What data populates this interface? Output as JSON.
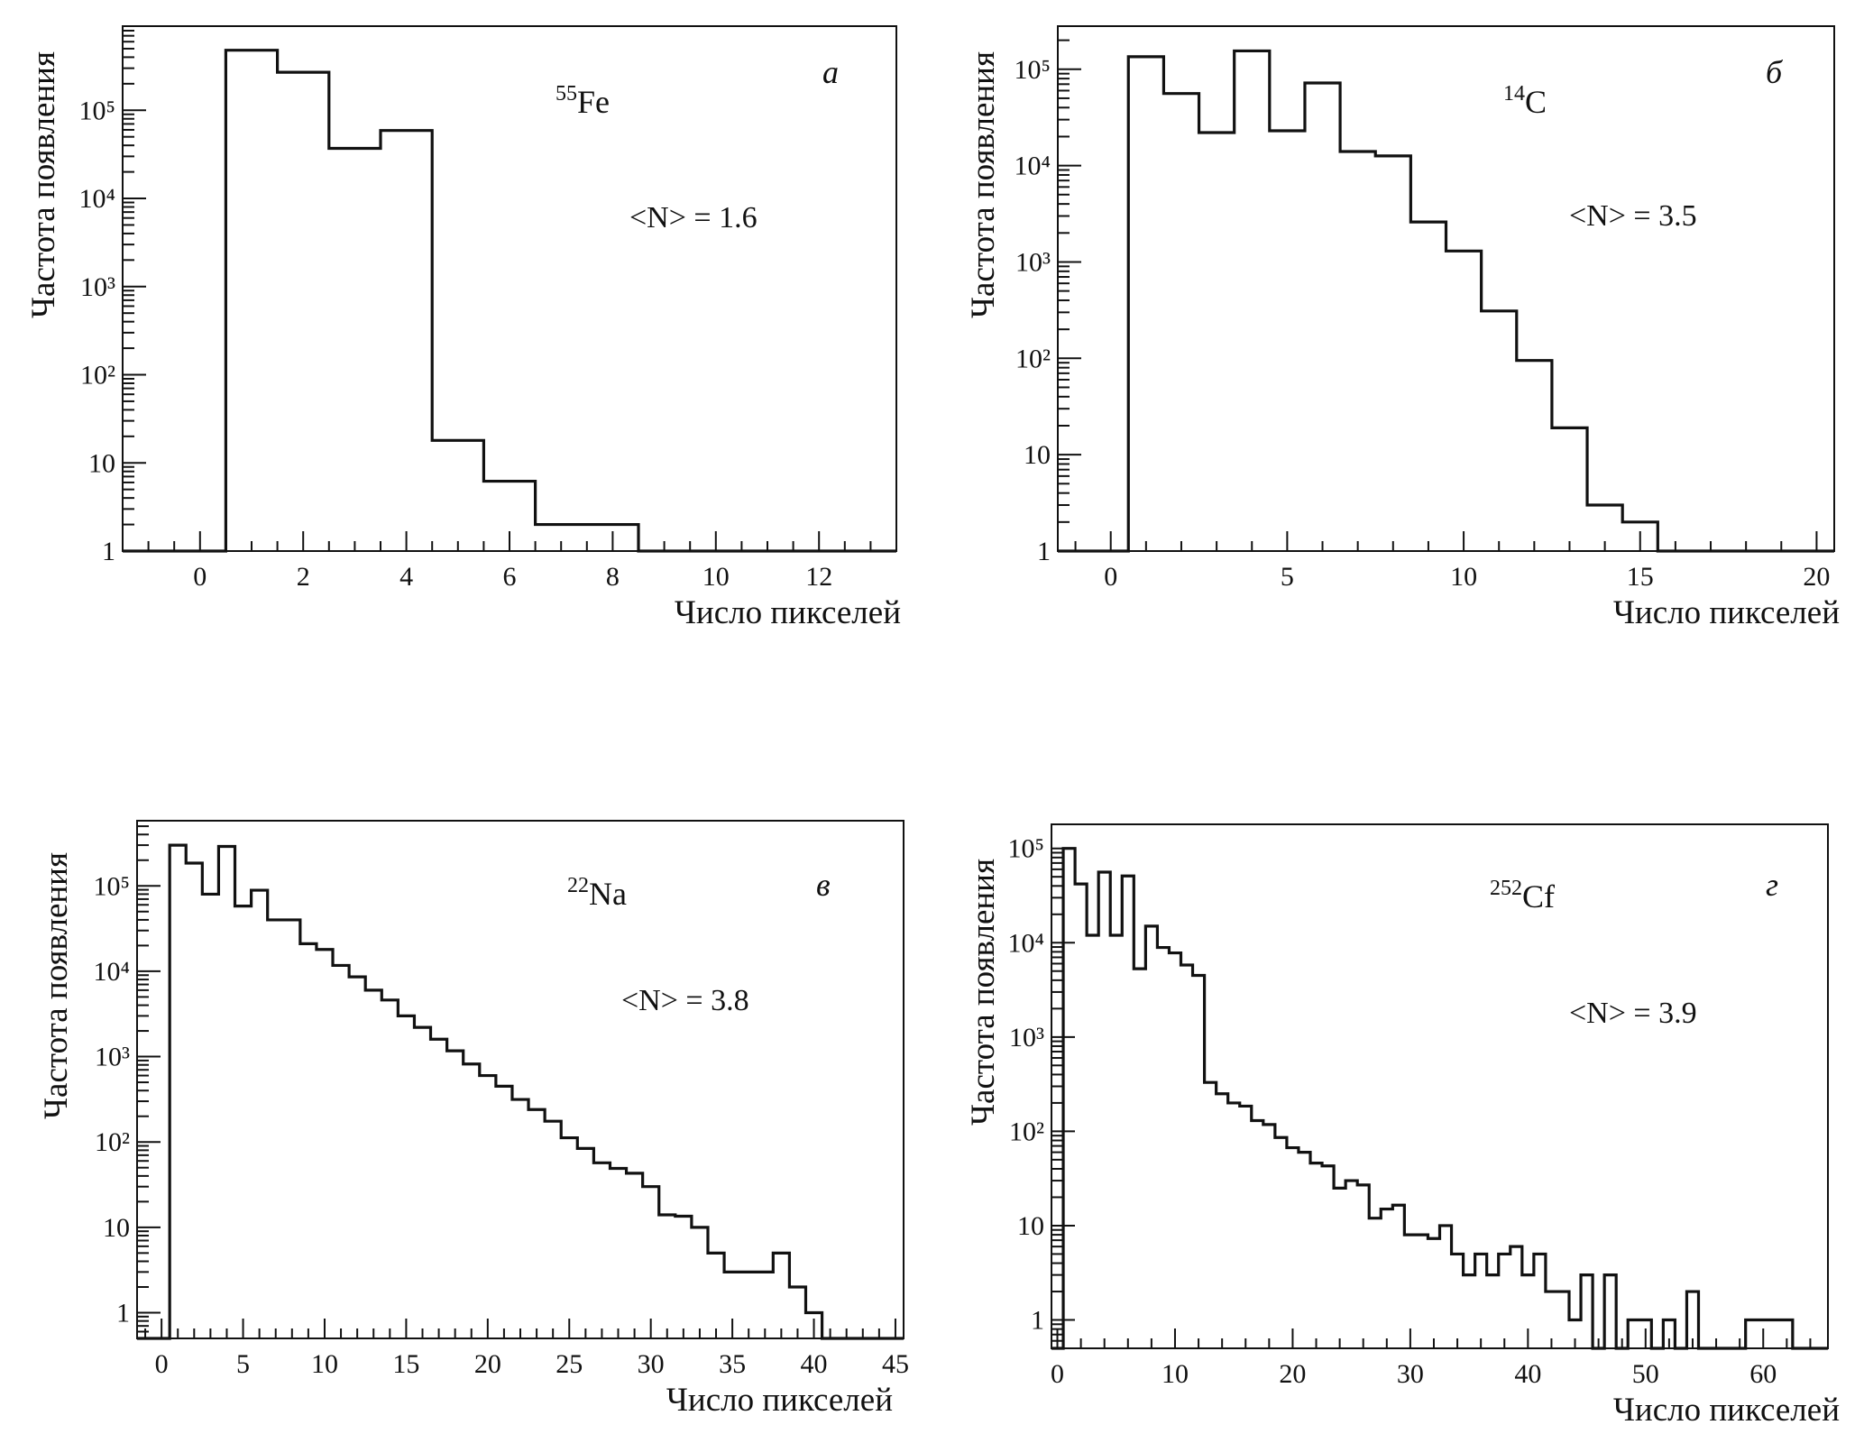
{
  "chart_data": [
    {
      "type": "bar",
      "panel_letter": "а",
      "isotope": {
        "mass": "55",
        "element": "Fe"
      },
      "mean_text": "<N> = 1.6",
      "xlabel": "Число пикселей",
      "ylabel": "Частота появления",
      "y_scale": "log",
      "xlim": [
        -1.5,
        13.5
      ],
      "ylim": [
        1,
        900000
      ],
      "x_ticks": [
        0,
        2,
        4,
        6,
        8,
        10,
        12
      ],
      "y_ticks": [
        1,
        10,
        100,
        1000,
        10000,
        100000
      ],
      "y_tick_labels": [
        "1",
        "10",
        "10²",
        "10³",
        "10⁴",
        "10⁵"
      ],
      "bin_width": 1,
      "bin_centers_start": -1,
      "values": [
        0,
        0,
        480000,
        270000,
        37000,
        59000,
        18,
        6.2,
        2,
        2,
        0,
        0,
        0,
        0,
        0
      ]
    },
    {
      "type": "bar",
      "panel_letter": "б",
      "isotope": {
        "mass": "14",
        "element": "C"
      },
      "mean_text": "<N> = 3.5",
      "xlabel": "Число пикселей",
      "ylabel": "Частота появления",
      "y_scale": "log",
      "xlim": [
        -1.5,
        20.5
      ],
      "ylim": [
        1,
        280000
      ],
      "x_ticks": [
        0,
        5,
        10,
        15,
        20
      ],
      "y_ticks": [
        1,
        10,
        100,
        1000,
        10000,
        100000
      ],
      "y_tick_labels": [
        "1",
        "10",
        "10²",
        "10³",
        "10⁴",
        "10⁵"
      ],
      "bin_width": 1,
      "bin_centers_start": -1,
      "values": [
        0,
        0,
        135000,
        56000,
        22000,
        155000,
        23000,
        72000,
        14000,
        12600,
        2600,
        1300,
        310,
        95,
        19,
        3,
        2,
        0,
        0,
        0,
        0,
        0
      ]
    },
    {
      "type": "bar",
      "panel_letter": "в",
      "isotope": {
        "mass": "22",
        "element": "Na"
      },
      "mean_text": "<N> = 3.8",
      "xlabel": "Число пикселей",
      "ylabel": "Частота появления",
      "y_scale": "log",
      "xlim": [
        -1.5,
        45.5
      ],
      "ylim": [
        0.5,
        580000
      ],
      "x_ticks": [
        0,
        5,
        10,
        15,
        20,
        25,
        30,
        35,
        40,
        45
      ],
      "y_ticks": [
        1,
        10,
        100,
        1000,
        10000,
        100000
      ],
      "y_tick_labels": [
        "1",
        "10",
        "10²",
        "10³",
        "10⁴",
        "10⁵"
      ],
      "bin_width": 1,
      "bin_centers_start": -1,
      "values": [
        0,
        0,
        300000,
        185000,
        80000,
        290000,
        58000,
        89000,
        40000,
        40000,
        21000,
        18000,
        11700,
        8600,
        6000,
        4600,
        3000,
        2200,
        1600,
        1170,
        820,
        600,
        450,
        315,
        240,
        175,
        112,
        84,
        57,
        49,
        43,
        30,
        14,
        13.5,
        10,
        5,
        3,
        3,
        3,
        5,
        2,
        1,
        0,
        0,
        0,
        0,
        0
      ]
    },
    {
      "type": "bar",
      "panel_letter": "г",
      "isotope": {
        "mass": "252",
        "element": "Cf"
      },
      "mean_text": "<N> = 3.9",
      "xlabel": "Число пикселей",
      "ylabel": "Частота появления",
      "y_scale": "log",
      "xlim": [
        -0.5,
        65.5
      ],
      "ylim": [
        0.5,
        180000
      ],
      "x_ticks": [
        0,
        10,
        20,
        30,
        40,
        50,
        60
      ],
      "y_ticks": [
        1,
        10,
        100,
        1000,
        10000,
        100000
      ],
      "y_tick_labels": [
        "1",
        "10",
        "10²",
        "10³",
        "10⁴",
        "10⁵"
      ],
      "bin_width": 1,
      "bin_centers_start": 0,
      "values": [
        0,
        100000,
        42000,
        12000,
        56000,
        12000,
        51000,
        5300,
        15000,
        8900,
        7800,
        5800,
        4500,
        330,
        250,
        200,
        185,
        130,
        118,
        86,
        67,
        60,
        46,
        43,
        25,
        30,
        27,
        12,
        15,
        16.5,
        8,
        8,
        7.3,
        10,
        5,
        3,
        5,
        3,
        5,
        6,
        3,
        5,
        2,
        2,
        1,
        3,
        0,
        3,
        0,
        1,
        1,
        0,
        1,
        0,
        2,
        0,
        0,
        0,
        0,
        1,
        1,
        1,
        1,
        0,
        0,
        0
      ]
    }
  ]
}
